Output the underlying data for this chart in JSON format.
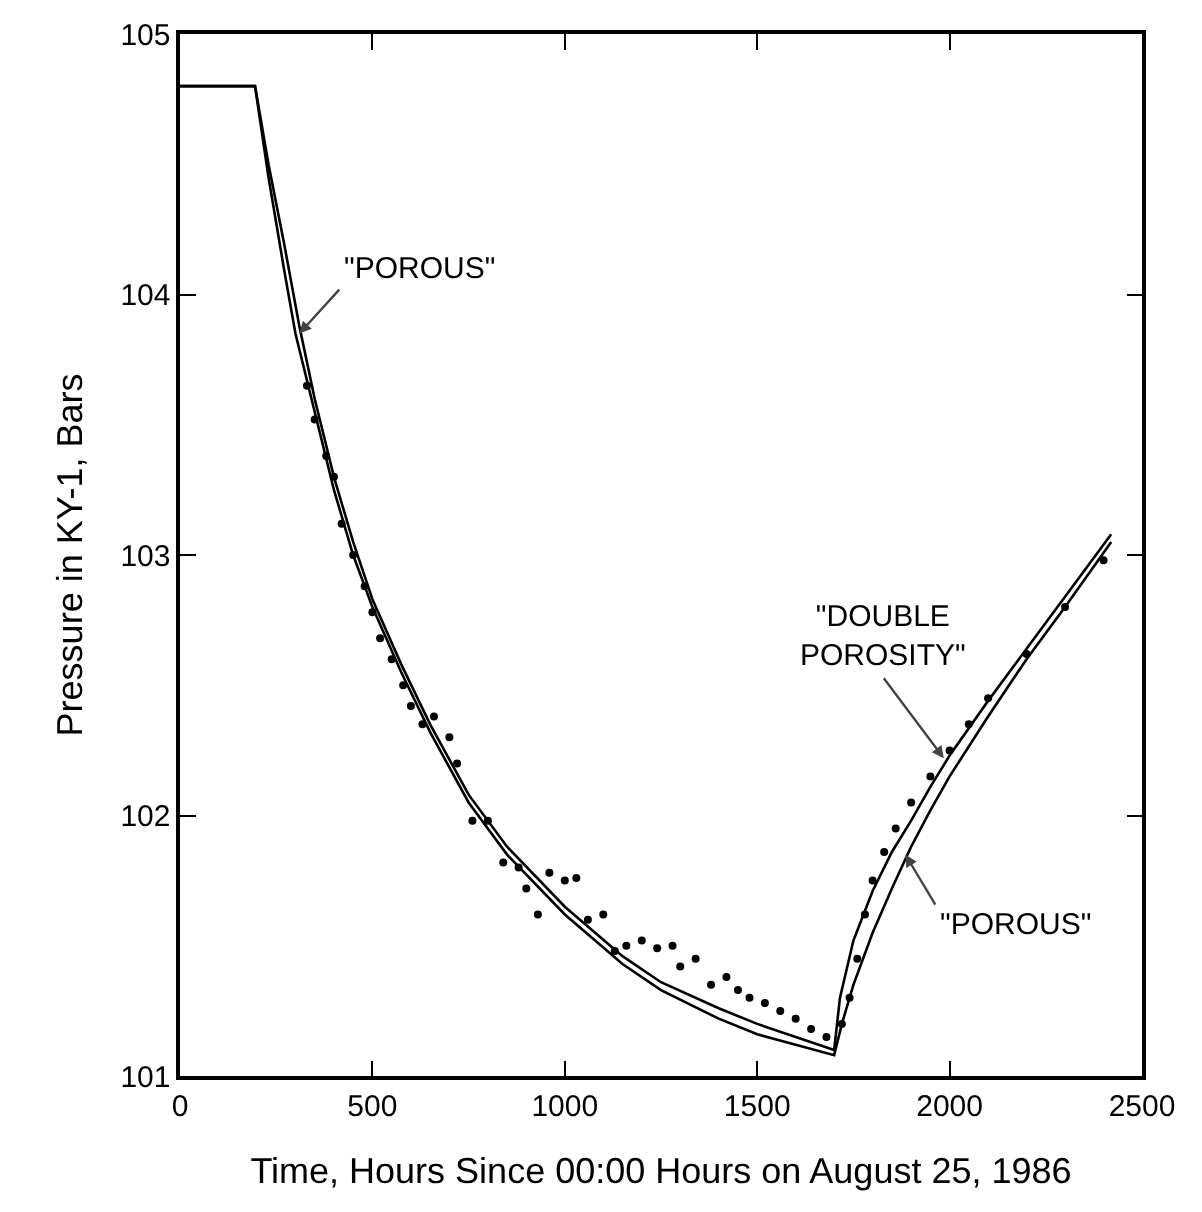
{
  "chart_data": {
    "type": "line",
    "xlabel": "Time, Hours Since 00:00 Hours on August 25, 1986",
    "ylabel": "Pressure in KY-1, Bars",
    "xlim": [
      0,
      2500
    ],
    "xticks": [
      0,
      500,
      1000,
      1500,
      2000,
      2500
    ],
    "ylim": [
      101,
      105
    ],
    "yticks": [
      101,
      102,
      103,
      104,
      105
    ],
    "grid": false,
    "series": [
      {
        "color": "#000000",
        "marker": "none",
        "x": [
          0,
          195,
          230,
          270,
          300,
          350,
          400,
          450,
          500,
          575,
          650,
          750,
          850,
          1000,
          1150,
          1250,
          1400,
          1500,
          1600,
          1700,
          1720,
          1750,
          1800,
          1850,
          1900,
          1950,
          2000,
          2100,
          2200,
          2300,
          2420
        ],
        "values": [
          104.8,
          104.8,
          104.45,
          104.1,
          103.85,
          103.55,
          103.25,
          103.0,
          102.8,
          102.55,
          102.32,
          102.05,
          101.85,
          101.62,
          101.43,
          101.33,
          101.22,
          101.16,
          101.12,
          101.08,
          101.2,
          101.35,
          101.55,
          101.72,
          101.88,
          102.02,
          102.15,
          102.38,
          102.6,
          102.8,
          103.05
        ]
      },
      {
        "color": "#000000",
        "marker": "none",
        "x": [
          0,
          195,
          230,
          270,
          310,
          350,
          400,
          450,
          500,
          575,
          650,
          750,
          850,
          1000,
          1150,
          1250,
          1400,
          1500,
          1600,
          1700,
          1715,
          1750,
          1800,
          1850,
          1900,
          1950,
          2000,
          2100,
          2200,
          2300,
          2420
        ],
        "values": [
          104.8,
          104.8,
          104.5,
          104.2,
          103.88,
          103.6,
          103.3,
          103.05,
          102.83,
          102.58,
          102.35,
          102.08,
          101.88,
          101.65,
          101.46,
          101.36,
          101.26,
          101.2,
          101.15,
          101.1,
          101.3,
          101.52,
          101.71,
          101.86,
          101.98,
          102.11,
          102.23,
          102.44,
          102.64,
          102.84,
          103.08
        ]
      },
      {
        "type": "scatter",
        "color": "#000000",
        "marker": "circle",
        "x": [
          330,
          350,
          380,
          400,
          420,
          450,
          480,
          500,
          520,
          550,
          580,
          600,
          630,
          660,
          700,
          720,
          760,
          800,
          840,
          880,
          900,
          930,
          960,
          1000,
          1030,
          1060,
          1100,
          1130,
          1160,
          1200,
          1240,
          1280,
          1300,
          1340,
          1380,
          1420,
          1450,
          1480,
          1520,
          1560,
          1600,
          1640,
          1680,
          1720,
          1740,
          1760,
          1780,
          1800,
          1830,
          1860,
          1900,
          1950,
          2000,
          2050,
          2100,
          2200,
          2300,
          2400
        ],
        "values": [
          103.65,
          103.52,
          103.38,
          103.3,
          103.12,
          103.0,
          102.88,
          102.78,
          102.68,
          102.6,
          102.5,
          102.42,
          102.35,
          102.38,
          102.3,
          102.2,
          101.98,
          101.98,
          101.82,
          101.8,
          101.72,
          101.62,
          101.78,
          101.75,
          101.76,
          101.6,
          101.62,
          101.48,
          101.5,
          101.52,
          101.49,
          101.5,
          101.42,
          101.45,
          101.35,
          101.38,
          101.33,
          101.3,
          101.28,
          101.25,
          101.22,
          101.18,
          101.15,
          101.2,
          101.3,
          101.45,
          101.62,
          101.75,
          101.86,
          101.95,
          102.05,
          102.15,
          102.25,
          102.35,
          102.45,
          102.62,
          102.8,
          102.98
        ]
      }
    ],
    "annotations": [
      {
        "text": "\"POROUS\"",
        "x": 310,
        "y": 103.85
      },
      {
        "text": "\"DOUBLE\nPOROSITY\"",
        "x": 1985,
        "y": 102.22
      },
      {
        "text": "\"POROUS\"",
        "x": 1885,
        "y": 101.85
      }
    ]
  }
}
